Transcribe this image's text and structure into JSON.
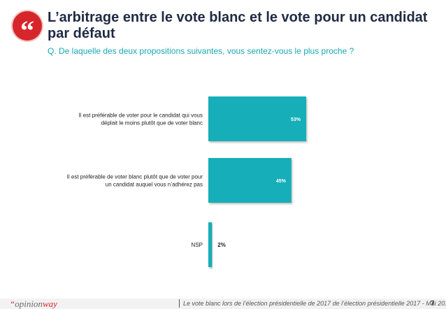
{
  "header": {
    "quote_glyph": "“",
    "title": "L’arbitrage entre le vote blanc et le vote pour un candidat par défaut",
    "subtitle": "Q. De laquelle des deux propositions suivantes, vous sentez-vous le plus proche ?"
  },
  "colors": {
    "bar": "#17aeb8",
    "bar_label": "#ffffff",
    "brand_red": "#d7262b",
    "title": "#1f2a44",
    "subtitle": "#17a8b5"
  },
  "chart_data": {
    "type": "bar",
    "orientation": "horizontal",
    "categories": [
      [
        "Il est préférable de voter pour le candidat qui vous",
        "déplait le moins plutôt que de voter blanc"
      ],
      [
        "Il est préférable de voter blanc plutôt que de voter pour",
        "un candidat auquel vous n’adhérez pas"
      ],
      [
        "NSP"
      ]
    ],
    "values": [
      53,
      45,
      2
    ],
    "value_labels": [
      "53%",
      "45%",
      "2%"
    ],
    "xlim": [
      0,
      53
    ],
    "grid": false,
    "legend": "none"
  },
  "footer": {
    "logo_quote": "“",
    "logo_word_1": "opinion",
    "logo_word_2": "way",
    "note": "Le vote blanc lors de l’élection présidentielle de 2017 de l’élection présidentielle 2017 - Mai 2017",
    "page": "7"
  }
}
